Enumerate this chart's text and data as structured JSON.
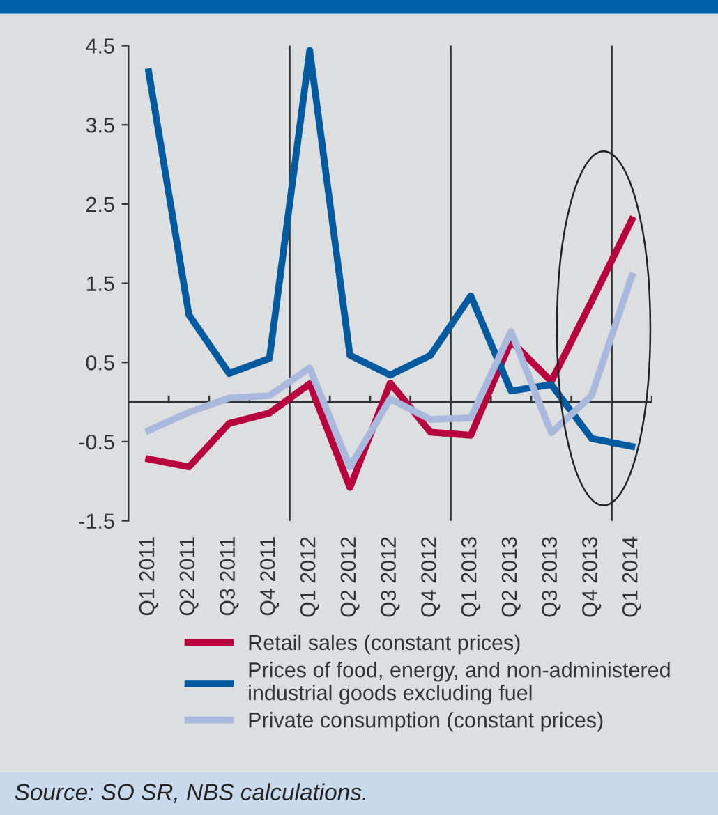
{
  "chart_data": {
    "type": "line",
    "categories": [
      "Q1 2011",
      "Q2 2011",
      "Q3 2011",
      "Q4 2011",
      "Q1 2012",
      "Q2 2012",
      "Q3 2012",
      "Q4 2012",
      "Q1 2013",
      "Q2 2013",
      "Q3 2013",
      "Q4 2013",
      "Q1 2014"
    ],
    "series": [
      {
        "name": "Retail sales (constant prices)",
        "color": "#b8003e",
        "values": [
          -0.72,
          -0.82,
          -0.27,
          -0.14,
          0.23,
          -1.08,
          0.24,
          -0.38,
          -0.42,
          0.77,
          0.26,
          1.27,
          2.3
        ]
      },
      {
        "name": "Prices of food, energy, and non-administered\nindustrial goods excluding fuel",
        "color": "#005aa0",
        "values": [
          4.17,
          1.1,
          0.36,
          0.55,
          4.44,
          0.59,
          0.34,
          0.59,
          1.34,
          0.14,
          0.22,
          -0.46,
          -0.56
        ]
      },
      {
        "name": "Private consumption (constant prices)",
        "color": "#a9b9de",
        "values": [
          -0.36,
          -0.13,
          0.05,
          0.08,
          0.43,
          -0.82,
          0.04,
          -0.22,
          -0.2,
          0.89,
          -0.39,
          0.08,
          1.59
        ]
      }
    ],
    "ylim": [
      -1.5,
      4.5
    ],
    "yticks": [
      -1.5,
      -0.5,
      0.5,
      1.5,
      2.5,
      3.5,
      4.5
    ],
    "grid": false,
    "legend": "bottom",
    "marker": "none",
    "line_style": "solid",
    "annotations": [
      "Source: SO SR, NBS calculations."
    ]
  }
}
